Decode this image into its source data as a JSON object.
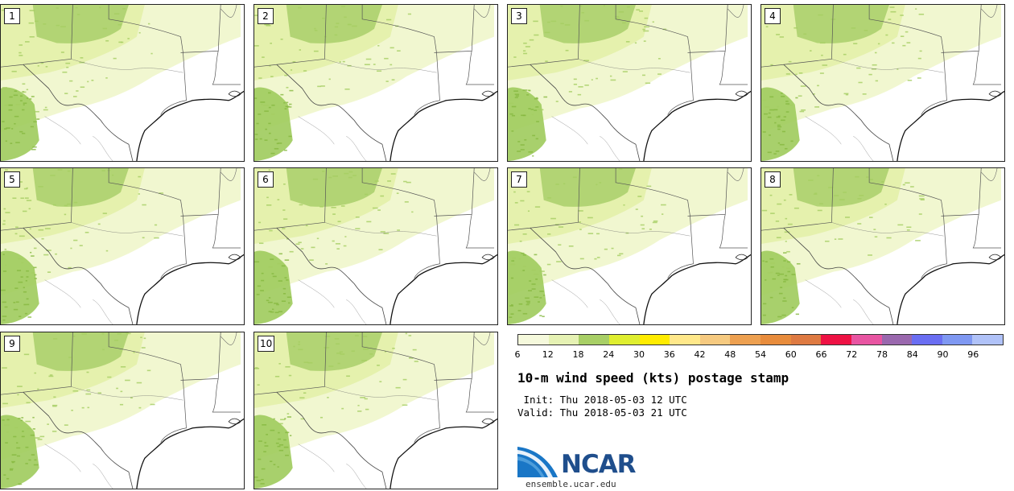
{
  "panels": [
    {
      "label": "1"
    },
    {
      "label": "2"
    },
    {
      "label": "3"
    },
    {
      "label": "4"
    },
    {
      "label": "5"
    },
    {
      "label": "6"
    },
    {
      "label": "7"
    },
    {
      "label": "8"
    },
    {
      "label": "9"
    },
    {
      "label": "10"
    }
  ],
  "colorbar": {
    "colors": [
      "#f5f9dc",
      "#e6f2b4",
      "#a8cf66",
      "#dfee30",
      "#ffec00",
      "#ffe88a",
      "#f6ca80",
      "#eda050",
      "#e88c3c",
      "#de7a42",
      "#ee1244",
      "#e855a2",
      "#9a68ae",
      "#6a6ef2",
      "#7f98f2",
      "#b0c2f8"
    ],
    "tick_labels": [
      "6",
      "12",
      "18",
      "24",
      "30",
      "36",
      "42",
      "48",
      "54",
      "60",
      "66",
      "72",
      "78",
      "84",
      "90",
      "96"
    ]
  },
  "title": "10-m wind speed (kts) postage stamp",
  "init": " Init: Thu 2018-05-03 12 UTC",
  "valid": "Valid: Thu 2018-05-03 21 UTC",
  "logo": {
    "text": "NCAR",
    "url": "ensemble.ucar.edu"
  }
}
